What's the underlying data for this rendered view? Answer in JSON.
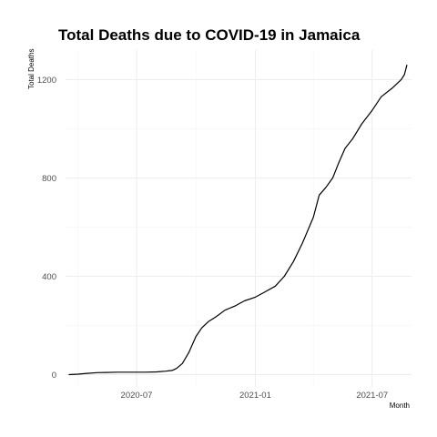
{
  "chart_data": {
    "type": "line",
    "title": "Total Deaths due to COVID-19 in Jamaica",
    "xlabel": "Month",
    "ylabel": "Total Deaths",
    "x_ticks": [
      "2020-07",
      "2021-01",
      "2021-07"
    ],
    "y_ticks": [
      0,
      400,
      800,
      1200
    ],
    "ylim": [
      -50,
      1320
    ],
    "xlim": [
      "2020-03-13",
      "2021-08-31"
    ],
    "grid": true,
    "series": [
      {
        "x": [
          "2020-03-18",
          "2020-04-01",
          "2020-04-15",
          "2020-05-01",
          "2020-05-15",
          "2020-06-01",
          "2020-06-15",
          "2020-07-01",
          "2020-07-15",
          "2020-08-01",
          "2020-08-15",
          "2020-08-25",
          "2020-09-01",
          "2020-09-10",
          "2020-09-20",
          "2020-10-01",
          "2020-10-10",
          "2020-10-20",
          "2020-11-01",
          "2020-11-15",
          "2020-12-01",
          "2020-12-15",
          "2021-01-01",
          "2021-01-15",
          "2021-02-01",
          "2021-02-15",
          "2021-03-01",
          "2021-03-15",
          "2021-04-01",
          "2021-04-10",
          "2021-04-20",
          "2021-05-01",
          "2021-05-10",
          "2021-05-20",
          "2021-06-01",
          "2021-06-15",
          "2021-07-01",
          "2021-07-15",
          "2021-08-01",
          "2021-08-15",
          "2021-08-20",
          "2021-08-24"
        ],
        "y": [
          0,
          2,
          5,
          8,
          9,
          10,
          10,
          10,
          10,
          11,
          14,
          17,
          25,
          45,
          90,
          155,
          190,
          215,
          235,
          262,
          280,
          300,
          315,
          335,
          360,
          400,
          460,
          535,
          640,
          730,
          760,
          800,
          860,
          920,
          960,
          1020,
          1075,
          1130,
          1165,
          1200,
          1220,
          1260
        ]
      }
    ]
  }
}
